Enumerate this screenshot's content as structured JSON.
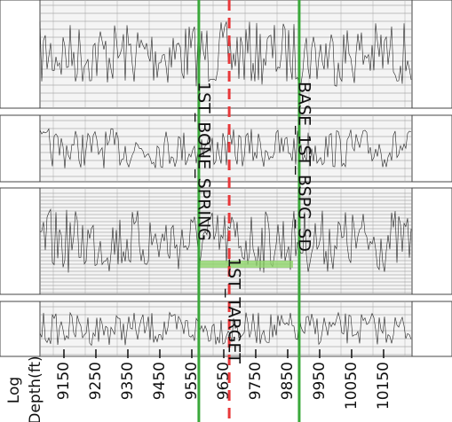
{
  "chart_data": {
    "type": "well-log",
    "xlabel": [
      "Log",
      "Depth(ft)"
    ],
    "xlim": [
      8950,
      10364
    ],
    "xticks": [
      9150,
      9250,
      9350,
      9450,
      9550,
      9650,
      9750,
      9850,
      9950,
      10050,
      10150
    ],
    "markers": [
      {
        "name": "1ST_BONE_SPRING",
        "value": 9572,
        "color": "#3aa83a",
        "style": "solid"
      },
      {
        "name": "1ST_TARGET",
        "value": 9667,
        "color": "#e8383a",
        "style": "dashed"
      },
      {
        "name": "BASE_1ST_BSPG_SD",
        "value": 9886,
        "color": "#3aa83a",
        "style": "solid"
      }
    ]
  }
}
